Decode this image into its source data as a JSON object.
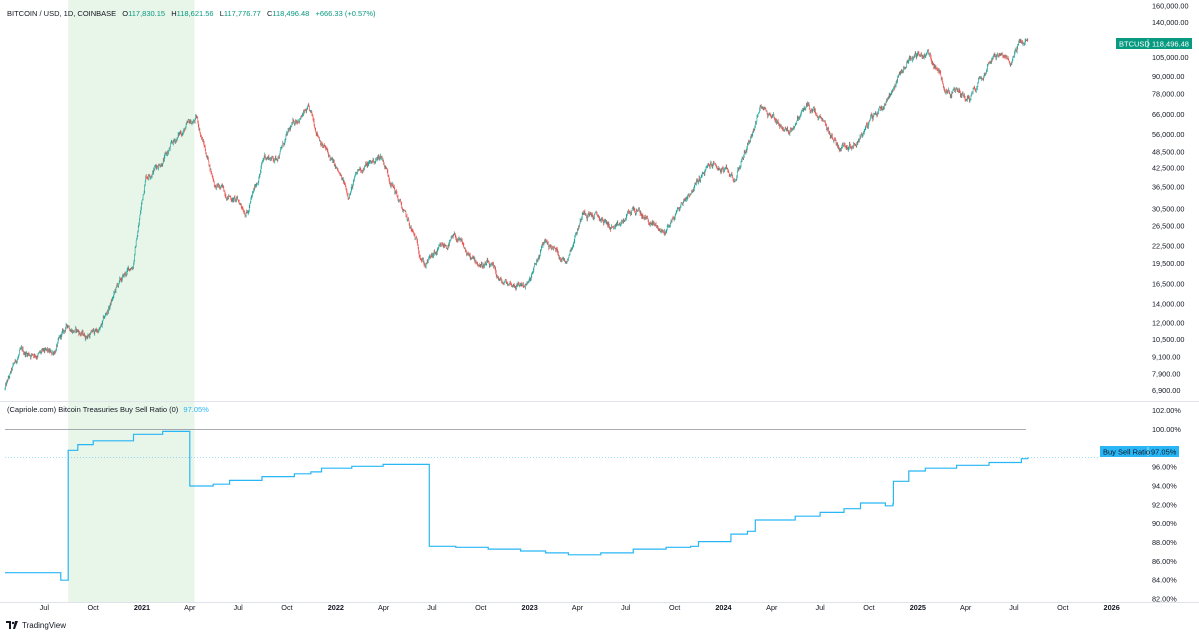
{
  "header": {
    "symbol": "BITCOIN / USD, 1D, COINBASE",
    "o_label": "O",
    "o_value": "117,830.15",
    "h_label": "H",
    "h_value": "118,621.56",
    "l_label": "L",
    "l_value": "117,776.77",
    "c_label": "C",
    "c_value": "118,496.48",
    "change": "+666.33 (+0.57%)"
  },
  "indicator": {
    "title": "(Capriole.com) Bitcoin Treasuries Buy Sell Ratio (0)",
    "value": "97.05%"
  },
  "price_label": {
    "name": "BTCUSD",
    "value": "118,496.48"
  },
  "ratio_label": {
    "name": "Buy Sell Ratio",
    "value": "97.05%"
  },
  "footer": {
    "brand": "TradingView"
  },
  "colors": {
    "up": "#26a69a",
    "down": "#ef5350",
    "ratio_line": "#29b6f6",
    "highlight": "#e8f5e9",
    "price_tag": "#089981",
    "ratio_tag": "#29b6f6"
  },
  "chart_data": [
    {
      "type": "candlestick",
      "series_name": "BTCUSD",
      "scale": "log",
      "y_ticks": [
        "160,000.00",
        "140,000.00",
        "105,000.00",
        "90,000.00",
        "78,000.00",
        "66,000.00",
        "56,000.00",
        "48,500.00",
        "42,500.00",
        "36,500.00",
        "30,500.00",
        "26,500.00",
        "22,500.00",
        "19,500.00",
        "16,500.00",
        "14,000.00",
        "12,000.00",
        "10,500.00",
        "9,100.00",
        "7,900.00",
        "6,900.00"
      ],
      "x_ticks": [
        "Jul",
        "Oct",
        "2021",
        "Apr",
        "Jul",
        "Oct",
        "2022",
        "Apr",
        "Jul",
        "Oct",
        "2023",
        "Apr",
        "Jul",
        "Oct",
        "2024",
        "Apr",
        "Jul",
        "Oct",
        "2025",
        "Apr",
        "Jul",
        "Oct",
        "2026"
      ],
      "x_range": [
        "2020-04-18",
        "2026-03-01"
      ],
      "highlight_range": [
        "2020-08-15",
        "2021-04-10"
      ],
      "approx_closes": [
        [
          "2020-04-18",
          7000
        ],
        [
          "2020-05-15",
          9300
        ],
        [
          "2020-06-15",
          9400
        ],
        [
          "2020-07-15",
          9200
        ],
        [
          "2020-08-15",
          11800
        ],
        [
          "2020-09-15",
          10800
        ],
        [
          "2020-10-15",
          11400
        ],
        [
          "2020-11-15",
          16000
        ],
        [
          "2020-12-15",
          19400
        ],
        [
          "2021-01-08",
          40000
        ],
        [
          "2021-02-15",
          47000
        ],
        [
          "2021-03-15",
          57000
        ],
        [
          "2021-04-14",
          63500
        ],
        [
          "2021-05-19",
          37000
        ],
        [
          "2021-06-20",
          33500
        ],
        [
          "2021-07-20",
          30000
        ],
        [
          "2021-08-20",
          47000
        ],
        [
          "2021-09-10",
          46000
        ],
        [
          "2021-10-20",
          64000
        ],
        [
          "2021-11-10",
          67500
        ],
        [
          "2021-12-15",
          48500
        ],
        [
          "2022-01-24",
          34500
        ],
        [
          "2022-02-15",
          42000
        ],
        [
          "2022-03-28",
          47000
        ],
        [
          "2022-05-12",
          28500
        ],
        [
          "2022-06-18",
          19500
        ],
        [
          "2022-08-15",
          24000
        ],
        [
          "2022-09-15",
          19800
        ],
        [
          "2022-10-15",
          19200
        ],
        [
          "2022-11-10",
          16500
        ],
        [
          "2022-12-31",
          16500
        ],
        [
          "2023-01-30",
          23500
        ],
        [
          "2023-03-10",
          20000
        ],
        [
          "2023-04-14",
          30500
        ],
        [
          "2023-06-15",
          25500
        ],
        [
          "2023-07-15",
          30500
        ],
        [
          "2023-09-11",
          25000
        ],
        [
          "2023-10-24",
          34000
        ],
        [
          "2023-12-10",
          44000
        ],
        [
          "2024-01-23",
          39000
        ],
        [
          "2024-03-14",
          72000
        ],
        [
          "2024-05-01",
          57000
        ],
        [
          "2024-06-07",
          71000
        ],
        [
          "2024-08-05",
          51000
        ],
        [
          "2024-09-06",
          53000
        ],
        [
          "2024-10-29",
          72000
        ],
        [
          "2024-12-17",
          106000
        ],
        [
          "2025-01-20",
          108000
        ],
        [
          "2025-02-28",
          80000
        ],
        [
          "2025-04-08",
          76000
        ],
        [
          "2025-05-22",
          110000
        ],
        [
          "2025-06-22",
          100000
        ],
        [
          "2025-07-14",
          121000
        ],
        [
          "2025-07-27",
          118496
        ]
      ]
    },
    {
      "type": "line",
      "series_name": "Buy Sell Ratio",
      "y_ticks": [
        "102.00%",
        "100.00%",
        "98.00%",
        "96.00%",
        "94.00%",
        "92.00%",
        "90.00%",
        "88.00%",
        "86.00%",
        "84.00%",
        "82.00%"
      ],
      "ylim": [
        81.9,
        102.5
      ],
      "reference_line": 100,
      "points": [
        [
          "2020-04-18",
          84.8
        ],
        [
          "2020-07-31",
          84.8
        ],
        [
          "2020-08-01",
          84.0
        ],
        [
          "2020-08-14",
          84.0
        ],
        [
          "2020-08-15",
          97.8
        ],
        [
          "2020-09-01",
          97.8
        ],
        [
          "2020-09-02",
          98.4
        ],
        [
          "2020-09-30",
          98.4
        ],
        [
          "2020-10-01",
          98.8
        ],
        [
          "2020-12-15",
          98.8
        ],
        [
          "2020-12-16",
          99.5
        ],
        [
          "2021-02-08",
          99.5
        ],
        [
          "2021-02-09",
          99.8
        ],
        [
          "2021-04-01",
          99.8
        ],
        [
          "2021-04-01",
          94.0
        ],
        [
          "2021-05-15",
          94.2
        ],
        [
          "2021-06-15",
          94.6
        ],
        [
          "2021-08-15",
          95.0
        ],
        [
          "2021-10-15",
          95.3
        ],
        [
          "2021-11-15",
          95.5
        ],
        [
          "2021-12-05",
          95.9
        ],
        [
          "2022-01-31",
          96.1
        ],
        [
          "2022-03-31",
          96.3
        ],
        [
          "2022-06-25",
          96.3
        ],
        [
          "2022-06-26",
          87.6
        ],
        [
          "2022-08-15",
          87.5
        ],
        [
          "2022-10-15",
          87.3
        ],
        [
          "2022-12-15",
          87.1
        ],
        [
          "2023-01-31",
          86.9
        ],
        [
          "2023-03-15",
          86.7
        ],
        [
          "2023-05-15",
          86.9
        ],
        [
          "2023-07-15",
          87.3
        ],
        [
          "2023-09-15",
          87.5
        ],
        [
          "2023-10-31",
          87.6
        ],
        [
          "2023-11-15",
          88.1
        ],
        [
          "2024-01-15",
          88.9
        ],
        [
          "2024-02-15",
          89.2
        ],
        [
          "2024-03-01",
          90.4
        ],
        [
          "2024-05-15",
          90.8
        ],
        [
          "2024-07-01",
          91.2
        ],
        [
          "2024-08-15",
          91.6
        ],
        [
          "2024-09-15",
          92.2
        ],
        [
          "2024-11-01",
          91.9
        ],
        [
          "2024-11-15",
          92.1
        ],
        [
          "2024-11-16",
          94.5
        ],
        [
          "2024-12-15",
          95.6
        ],
        [
          "2025-01-15",
          95.9
        ],
        [
          "2025-03-15",
          96.2
        ],
        [
          "2025-05-15",
          96.5
        ],
        [
          "2025-07-15",
          96.9
        ],
        [
          "2025-07-27",
          97.05
        ]
      ]
    }
  ]
}
